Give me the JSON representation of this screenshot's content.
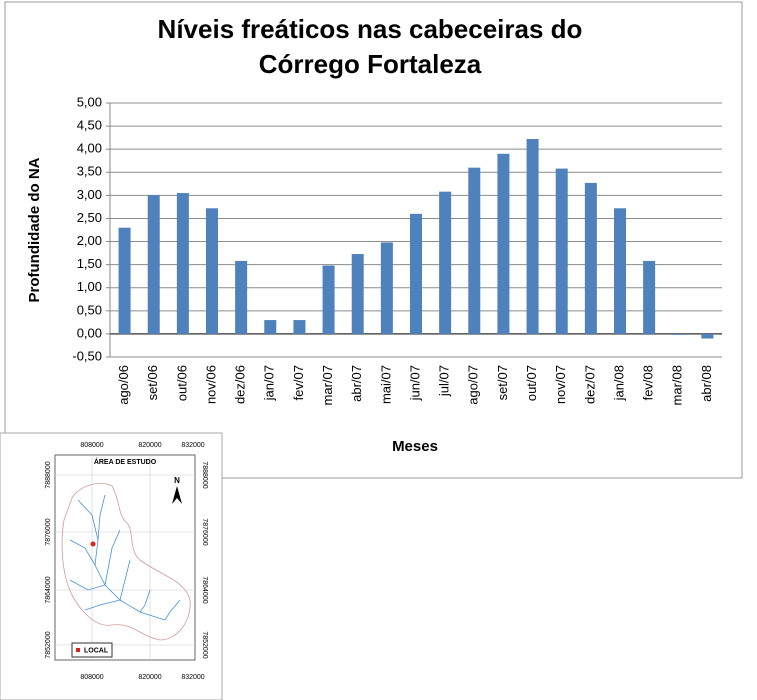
{
  "chart_data": {
    "type": "bar",
    "title": "Níveis freáticos nas cabeceiras do Córrego Fortaleza",
    "x_label": "Meses",
    "y_label": "Profundidade do NA",
    "categories": [
      "ago/06",
      "set/06",
      "out/06",
      "nov/06",
      "dez/06",
      "jan/07",
      "fev/07",
      "mar/07",
      "abr/07",
      "mai/07",
      "jun/07",
      "jul/07",
      "ago/07",
      "set/07",
      "out/07",
      "nov/07",
      "dez/07",
      "jan/08",
      "fev/08",
      "mar/08",
      "abr/08"
    ],
    "values": [
      2.3,
      3.0,
      3.05,
      2.72,
      1.58,
      0.3,
      0.3,
      1.48,
      1.73,
      1.98,
      2.6,
      3.08,
      3.6,
      3.9,
      4.22,
      3.58,
      3.27,
      2.72,
      1.58,
      -0.02,
      -0.1
    ],
    "color": "#4f81bd",
    "ylim": [
      -0.5,
      5
    ],
    "yticks": [
      {
        "value": -0.5,
        "label": "-0,50"
      },
      {
        "value": 0,
        "label": "0,00"
      },
      {
        "value": 0.5,
        "label": "0,50"
      },
      {
        "value": 1,
        "label": "1,00"
      },
      {
        "value": 1.5,
        "label": "1,50"
      },
      {
        "value": 2,
        "label": "2,00"
      },
      {
        "value": 2.5,
        "label": "2,50"
      },
      {
        "value": 3,
        "label": "3,00"
      },
      {
        "value": 3.5,
        "label": "3,50"
      },
      {
        "value": 4,
        "label": "4,00"
      },
      {
        "value": 4.5,
        "label": "4,50"
      },
      {
        "value": 5,
        "label": "5,00"
      }
    ],
    "grid": true
  },
  "map": {
    "title": "ÁREA DE ESTUDO",
    "north": "N",
    "legend": "LOCAL",
    "x_labels": [
      "808000",
      "820000",
      "832000"
    ],
    "y_labels": [
      "7888000",
      "7876000",
      "7864000",
      "7852000"
    ]
  }
}
